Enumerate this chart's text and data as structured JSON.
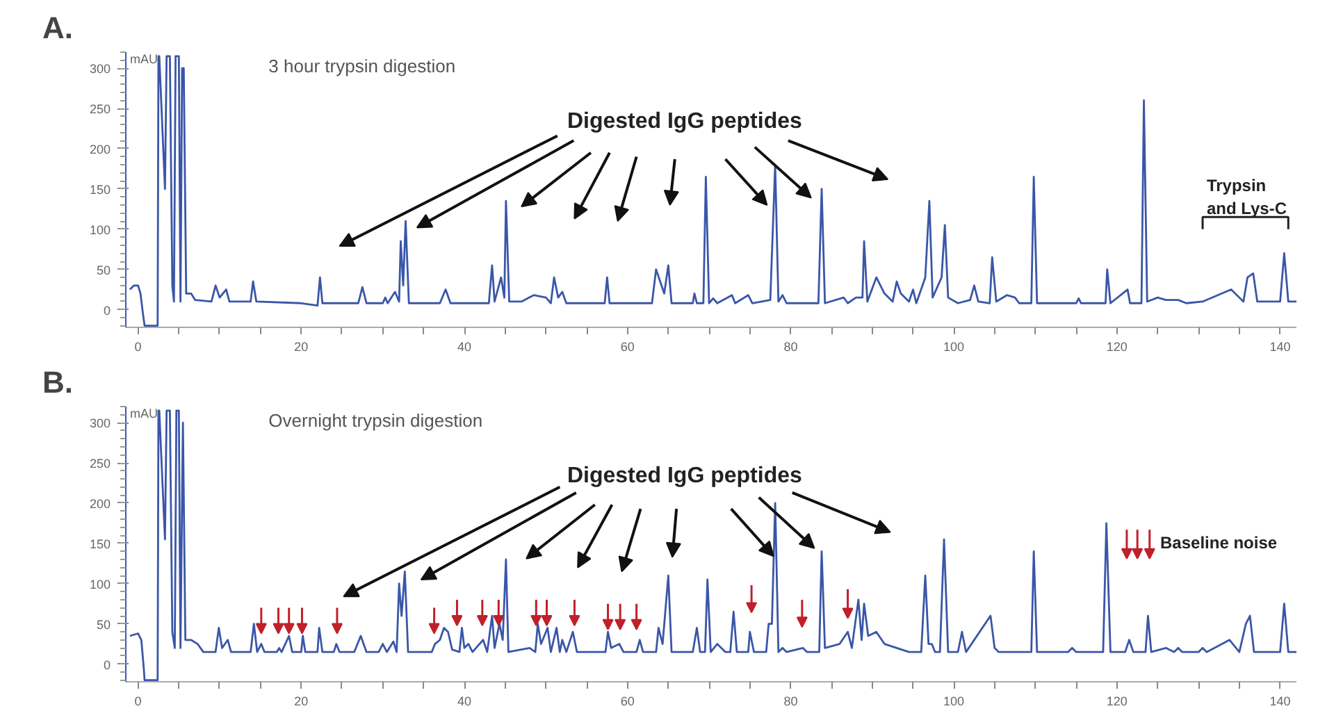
{
  "chart_data": [
    {
      "type": "line",
      "title": "A.",
      "subtitle": "3 hour trypsin digestion",
      "ylabel": "mAU",
      "xlim": [
        -1.5,
        142
      ],
      "ylim": [
        -22,
        320
      ],
      "xticks": [
        0,
        {
          "value": 5,
          "label": null
        },
        {
          "value": 10,
          "label": null
        },
        {
          "value": 15,
          "label": null
        },
        20,
        {
          "value": 25,
          "label": null
        },
        {
          "value": 30,
          "label": null
        },
        {
          "value": 35,
          "label": null
        },
        40,
        {
          "value": 45,
          "label": null
        },
        {
          "value": 50,
          "label": null
        },
        {
          "value": 55,
          "label": null
        },
        60,
        {
          "value": 65,
          "label": null
        },
        {
          "value": 70,
          "label": null
        },
        {
          "value": 75,
          "label": null
        },
        80,
        {
          "value": 85,
          "label": null
        },
        {
          "value": 90,
          "label": null
        },
        {
          "value": 95,
          "label": null
        },
        100,
        {
          "value": 105,
          "label": null
        },
        {
          "value": 110,
          "label": null
        },
        {
          "value": 115,
          "label": null
        },
        120,
        {
          "value": 125,
          "label": null
        },
        {
          "value": 130,
          "label": null
        },
        {
          "value": 135,
          "label": null
        },
        140
      ],
      "yticks": [
        0,
        50,
        100,
        150,
        200,
        250,
        300
      ],
      "grid": false,
      "annotations": [
        "Digested IgG peptides",
        "Trypsin\nand Lys-C"
      ],
      "series": [
        {
          "color": "#3a56a8",
          "x": [
            -1,
            -0.5,
            0,
            0.3,
            0.6,
            0.8,
            2.4,
            2.5,
            2.6,
            3.3,
            3.5,
            3.9,
            4.2,
            4.4,
            4.6,
            5,
            5.2,
            5.4,
            5.6,
            5.9,
            6.5,
            7,
            9,
            9.5,
            10,
            10.8,
            11.2,
            13.8,
            14.1,
            14.5,
            20,
            22,
            22.3,
            22.6,
            27,
            27.5,
            28,
            30,
            30.3,
            30.6,
            31.5,
            32,
            32.2,
            32.5,
            32.8,
            33.2,
            37,
            37.7,
            38.3,
            43,
            43.4,
            43.7,
            44.5,
            44.9,
            45.1,
            45.5,
            47,
            48.5,
            50,
            50.6,
            51,
            51.5,
            52,
            52.5,
            57.2,
            57.5,
            57.8,
            63,
            63.5,
            64,
            64.5,
            65,
            65.4,
            68,
            68.2,
            68.5,
            69.3,
            69.6,
            70,
            70.5,
            71,
            72.8,
            73.2,
            74.8,
            75.3,
            77.5,
            78.1,
            78.5,
            79,
            79.5,
            83.4,
            83.8,
            84.2,
            86.5,
            87,
            88,
            88.8,
            89,
            89.4,
            90.5,
            91.5,
            92.5,
            93,
            93.5,
            94.5,
            95,
            95.4,
            96.5,
            97,
            97.4,
            98.5,
            98.9,
            99.3,
            100.5,
            102,
            102.5,
            103,
            104.4,
            104.7,
            105.2,
            106.5,
            107.5,
            108,
            109.5,
            109.8,
            110.2,
            115,
            115.3,
            115.6,
            118.6,
            118.8,
            119.2,
            121.3,
            121.6,
            123,
            123.3,
            123.7,
            125,
            126,
            127.5,
            128.5,
            130.5,
            134,
            135.5,
            136,
            136.7,
            137.2,
            140,
            140.5,
            141,
            142
          ],
          "values": [
            25,
            30,
            30,
            20,
            -5,
            -20,
            -20,
            315,
            315,
            150,
            315,
            315,
            30,
            10,
            315,
            315,
            10,
            300,
            300,
            20,
            20,
            12,
            10,
            30,
            15,
            25,
            10,
            10,
            35,
            10,
            8,
            5,
            40,
            8,
            8,
            28,
            8,
            8,
            15,
            8,
            22,
            10,
            85,
            30,
            110,
            8,
            8,
            25,
            8,
            8,
            55,
            10,
            40,
            15,
            135,
            10,
            10,
            18,
            15,
            8,
            40,
            15,
            22,
            8,
            8,
            40,
            8,
            8,
            50,
            35,
            20,
            55,
            8,
            8,
            20,
            8,
            8,
            165,
            8,
            14,
            8,
            18,
            8,
            18,
            8,
            12,
            180,
            10,
            18,
            8,
            8,
            150,
            8,
            15,
            8,
            15,
            15,
            85,
            10,
            40,
            20,
            10,
            35,
            20,
            10,
            25,
            8,
            40,
            135,
            15,
            40,
            105,
            15,
            8,
            12,
            30,
            10,
            8,
            65,
            10,
            18,
            15,
            8,
            8,
            165,
            8,
            8,
            14,
            8,
            8,
            50,
            8,
            25,
            8,
            8,
            260,
            10,
            15,
            12,
            12,
            8,
            10,
            25,
            10,
            40,
            45,
            10,
            10,
            70,
            10,
            10
          ]
        }
      ]
    },
    {
      "type": "line",
      "title": "B.",
      "subtitle": "Overnight trypsin digestion",
      "ylabel": "mAU",
      "xlim": [
        -1.5,
        142
      ],
      "ylim": [
        -22,
        320
      ],
      "xticks": [
        0,
        {
          "value": 5,
          "label": null
        },
        {
          "value": 10,
          "label": null
        },
        {
          "value": 15,
          "label": null
        },
        20,
        {
          "value": 25,
          "label": null
        },
        {
          "value": 30,
          "label": null
        },
        {
          "value": 35,
          "label": null
        },
        40,
        {
          "value": 45,
          "label": null
        },
        {
          "value": 50,
          "label": null
        },
        {
          "value": 55,
          "label": null
        },
        60,
        {
          "value": 65,
          "label": null
        },
        {
          "value": 70,
          "label": null
        },
        {
          "value": 75,
          "label": null
        },
        80,
        {
          "value": 85,
          "label": null
        },
        {
          "value": 90,
          "label": null
        },
        {
          "value": 95,
          "label": null
        },
        100,
        {
          "value": 105,
          "label": null
        },
        {
          "value": 110,
          "label": null
        },
        {
          "value": 115,
          "label": null
        },
        120,
        {
          "value": 125,
          "label": null
        },
        {
          "value": 130,
          "label": null
        },
        {
          "value": 135,
          "label": null
        },
        140
      ],
      "yticks": [
        0,
        50,
        100,
        150,
        200,
        250,
        300
      ],
      "grid": false,
      "annotations": [
        {
          "text": "Digested IgG peptides",
          "x": 77.9,
          "y": 134
        },
        "Baseline noise"
      ],
      "series": [
        {
          "color": "#3a56a8",
          "x": [
            -1,
            0,
            0.4,
            0.7,
            0.8,
            2.4,
            2.5,
            2.6,
            3.3,
            3.5,
            3.9,
            4.2,
            4.5,
            4.7,
            5,
            5.2,
            5.5,
            5.8,
            6.5,
            7.3,
            8,
            9.5,
            9.9,
            10.3,
            11,
            11.4,
            13.8,
            14.2,
            14.6,
            15.1,
            15.5,
            17,
            17.3,
            17.6,
            18.5,
            18.9,
            20,
            20.2,
            20.5,
            22,
            22.2,
            22.6,
            24,
            24.3,
            24.7,
            26.5,
            27.3,
            28,
            29.5,
            30,
            30.5,
            31.3,
            31.7,
            32,
            32.3,
            32.7,
            33.1,
            36,
            36.4,
            37,
            37.5,
            38,
            38.5,
            39.4,
            39.7,
            40,
            40.5,
            41,
            42.3,
            42.8,
            43.4,
            43.7,
            44.3,
            44.7,
            45.1,
            45.4,
            48,
            48.7,
            49,
            49.4,
            50.2,
            50.6,
            51.3,
            51.7,
            52,
            52.5,
            53.3,
            53.8,
            57.3,
            57.6,
            58,
            59,
            59.5,
            61.1,
            61.5,
            61.9,
            63.5,
            63.8,
            64.3,
            65,
            65.4,
            68,
            68.5,
            68.9,
            69.5,
            69.8,
            70.2,
            71,
            72,
            72.6,
            73,
            73.4,
            74.8,
            75,
            75.5,
            77,
            77.3,
            77.7,
            78.1,
            78.5,
            79,
            79.5,
            81.5,
            82,
            83.5,
            83.8,
            84.2,
            86,
            87,
            87.5,
            88.3,
            88.7,
            89,
            89.5,
            90.5,
            91.5,
            93,
            94.5,
            96,
            96.5,
            96.9,
            97.3,
            97.7,
            98.3,
            98.8,
            99.3,
            100.5,
            101,
            101.5,
            104.5,
            105,
            105.5,
            109.5,
            109.8,
            110.2,
            114,
            114.5,
            115,
            118.3,
            118.7,
            119.2,
            121,
            121.5,
            122,
            123.5,
            123.8,
            124.2,
            126,
            127,
            127.5,
            128,
            130,
            130.5,
            131,
            133.8,
            135,
            135.8,
            136.3,
            136.8,
            140,
            140.5,
            141,
            142
          ],
          "values": [
            35,
            38,
            30,
            -5,
            -20,
            -20,
            315,
            315,
            155,
            315,
            315,
            40,
            20,
            315,
            315,
            20,
            300,
            30,
            30,
            25,
            15,
            15,
            45,
            20,
            30,
            15,
            15,
            50,
            15,
            25,
            15,
            15,
            20,
            15,
            35,
            15,
            15,
            35,
            15,
            15,
            45,
            15,
            15,
            25,
            15,
            15,
            35,
            15,
            15,
            25,
            15,
            28,
            15,
            100,
            60,
            115,
            15,
            15,
            25,
            30,
            45,
            40,
            18,
            15,
            45,
            20,
            25,
            15,
            30,
            15,
            60,
            20,
            50,
            30,
            130,
            15,
            20,
            15,
            50,
            25,
            45,
            15,
            45,
            15,
            30,
            15,
            40,
            15,
            15,
            40,
            20,
            25,
            15,
            15,
            30,
            15,
            15,
            45,
            25,
            110,
            15,
            15,
            45,
            15,
            15,
            105,
            15,
            25,
            15,
            15,
            65,
            15,
            15,
            40,
            15,
            15,
            50,
            50,
            200,
            15,
            20,
            15,
            20,
            15,
            15,
            140,
            20,
            25,
            40,
            20,
            80,
            30,
            75,
            35,
            40,
            25,
            20,
            15,
            15,
            110,
            25,
            25,
            15,
            15,
            155,
            15,
            15,
            40,
            15,
            60,
            20,
            15,
            15,
            140,
            15,
            15,
            20,
            15,
            15,
            175,
            15,
            15,
            30,
            15,
            15,
            60,
            15,
            20,
            15,
            20,
            15,
            15,
            20,
            15,
            30,
            15,
            50,
            60,
            15,
            15,
            75,
            15,
            15
          ]
        }
      ]
    }
  ]
}
